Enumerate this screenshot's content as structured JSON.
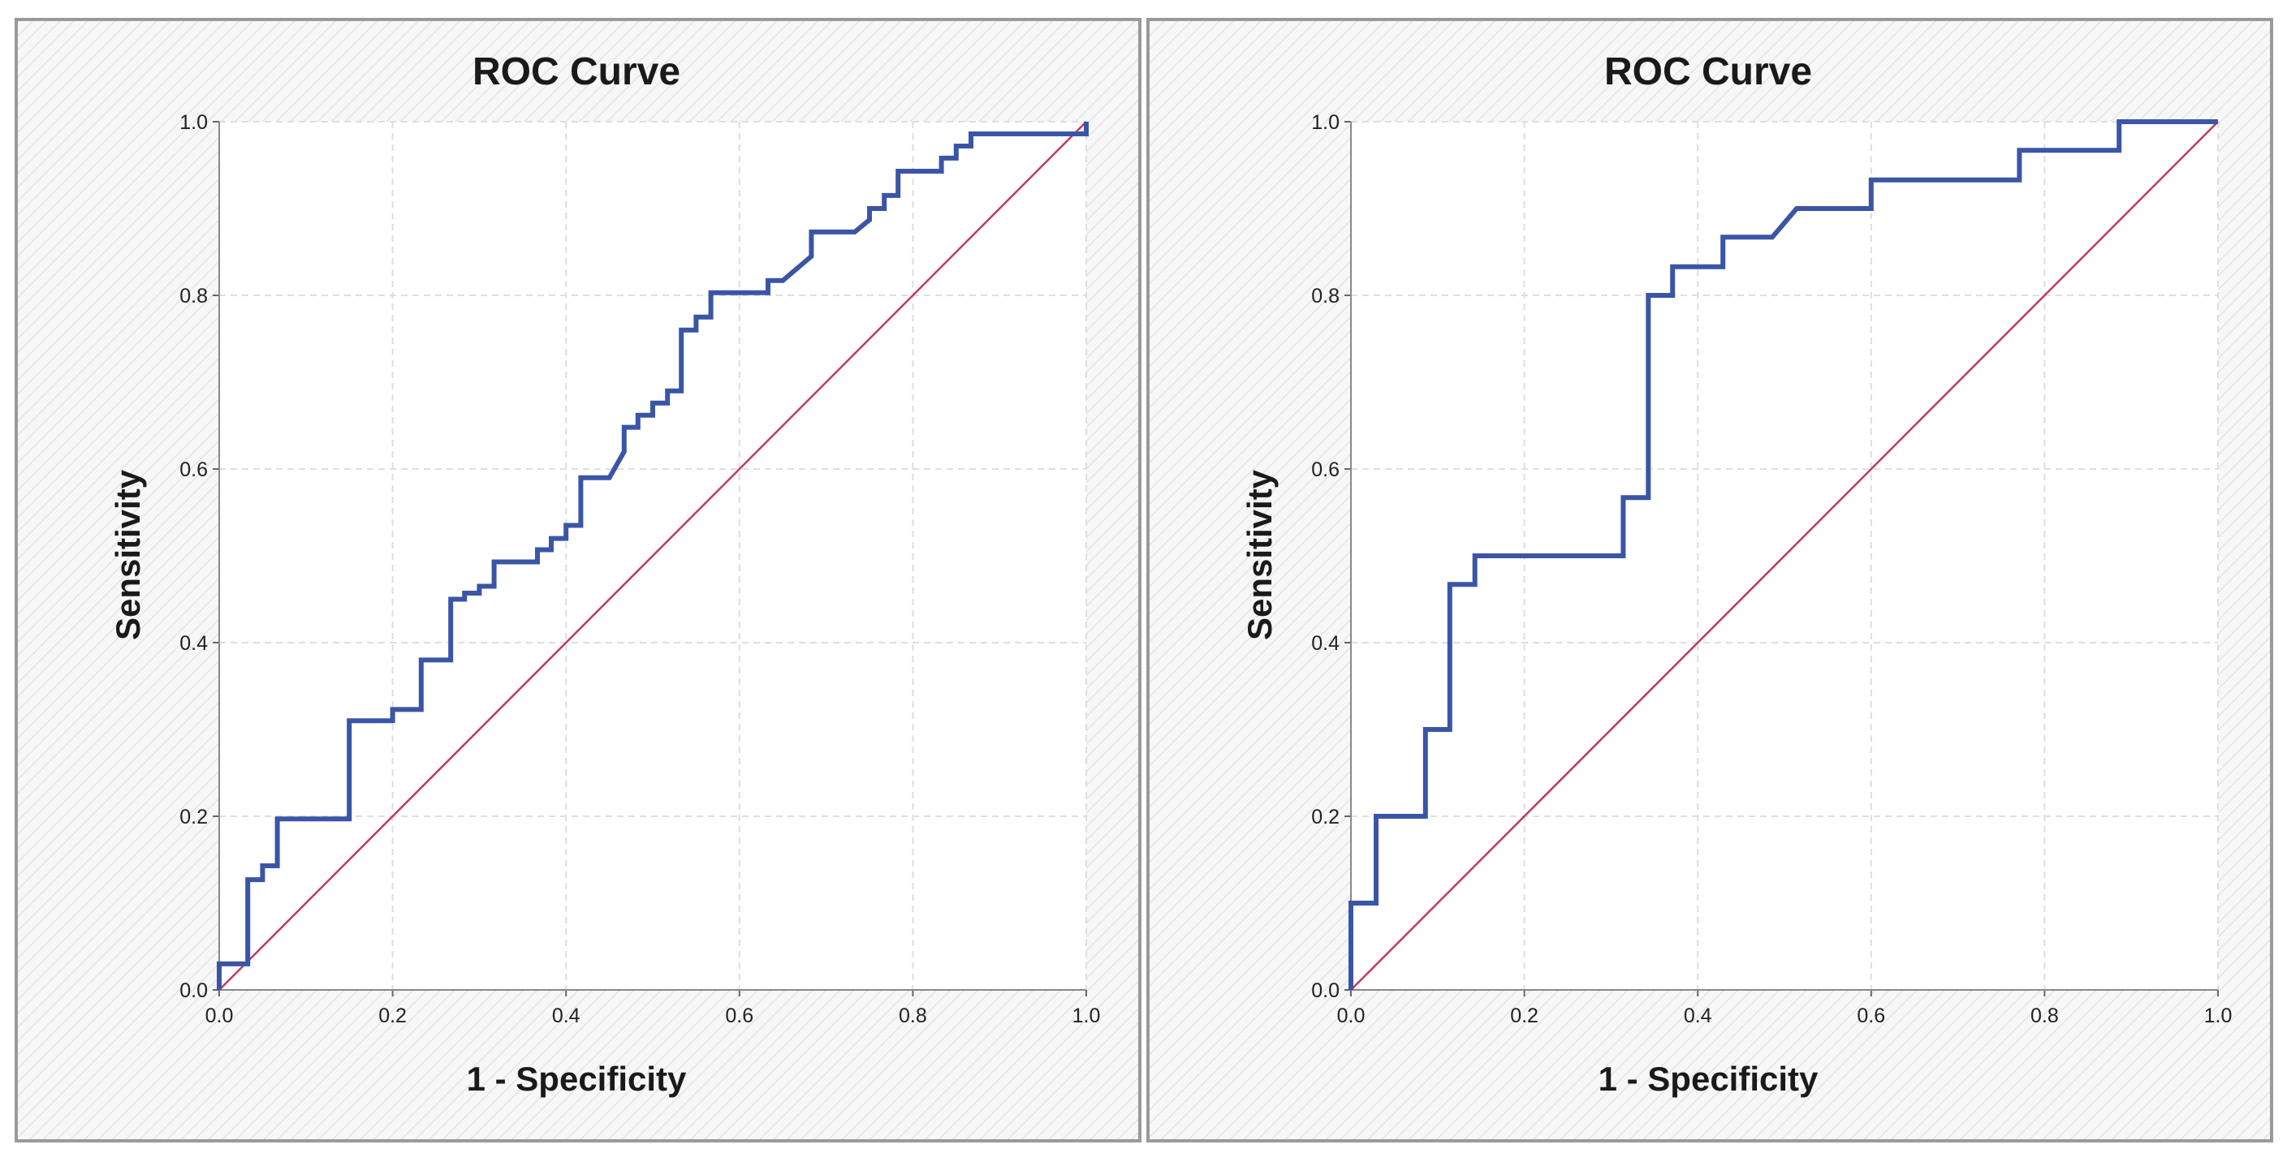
{
  "chart_data": [
    {
      "type": "line",
      "title": "ROC Curve",
      "xlabel": "1 - Specificity",
      "ylabel": "Sensitivity",
      "xlim": [
        0,
        1
      ],
      "ylim": [
        0,
        1
      ],
      "xticks": [
        "0.0",
        "0.2",
        "0.4",
        "0.6",
        "0.8",
        "1.0"
      ],
      "yticks": [
        "0.0",
        "0.2",
        "0.4",
        "0.6",
        "0.8",
        "1.0"
      ],
      "grid": true,
      "legend": "none",
      "series": [
        {
          "role": "roc-curve",
          "color": "#3b55a6",
          "x": [
            0.0,
            0.0,
            0.033,
            0.033,
            0.05,
            0.05,
            0.067,
            0.067,
            0.15,
            0.15,
            0.2,
            0.2,
            0.233,
            0.233,
            0.267,
            0.267,
            0.283,
            0.283,
            0.3,
            0.3,
            0.317,
            0.317,
            0.367,
            0.367,
            0.383,
            0.383,
            0.4,
            0.4,
            0.417,
            0.417,
            0.45,
            0.467,
            0.467,
            0.483,
            0.483,
            0.5,
            0.5,
            0.517,
            0.517,
            0.533,
            0.533,
            0.55,
            0.55,
            0.567,
            0.567,
            0.633,
            0.633,
            0.65,
            0.683,
            0.683,
            0.733,
            0.75,
            0.75,
            0.767,
            0.767,
            0.783,
            0.783,
            0.833,
            0.833,
            0.85,
            0.85,
            0.867,
            0.867,
            0.883,
            0.883,
            1.0,
            1.0
          ],
          "y": [
            0.0,
            0.03,
            0.03,
            0.127,
            0.127,
            0.143,
            0.143,
            0.197,
            0.197,
            0.31,
            0.31,
            0.323,
            0.323,
            0.38,
            0.38,
            0.45,
            0.45,
            0.457,
            0.457,
            0.465,
            0.465,
            0.493,
            0.493,
            0.507,
            0.507,
            0.52,
            0.52,
            0.535,
            0.535,
            0.59,
            0.59,
            0.62,
            0.648,
            0.648,
            0.662,
            0.662,
            0.676,
            0.676,
            0.69,
            0.69,
            0.76,
            0.76,
            0.775,
            0.775,
            0.803,
            0.803,
            0.817,
            0.817,
            0.845,
            0.873,
            0.873,
            0.887,
            0.9,
            0.9,
            0.915,
            0.915,
            0.943,
            0.943,
            0.958,
            0.958,
            0.972,
            0.972,
            0.986,
            0.986,
            0.986,
            0.986,
            1.0
          ]
        },
        {
          "role": "reference-line",
          "color": "#c2395e",
          "x": [
            0.0,
            1.0
          ],
          "y": [
            0.0,
            1.0
          ]
        }
      ]
    },
    {
      "type": "line",
      "title": "ROC Curve",
      "xlabel": "1 - Specificity",
      "ylabel": "Sensitivity",
      "xlim": [
        0,
        1
      ],
      "ylim": [
        0,
        1
      ],
      "xticks": [
        "0.0",
        "0.2",
        "0.4",
        "0.6",
        "0.8",
        "1.0"
      ],
      "yticks": [
        "0.0",
        "0.2",
        "0.4",
        "0.6",
        "0.8",
        "1.0"
      ],
      "grid": true,
      "legend": "none",
      "series": [
        {
          "role": "roc-curve",
          "color": "#3b55a6",
          "x": [
            0.0,
            0.0,
            0.029,
            0.029,
            0.086,
            0.086,
            0.114,
            0.114,
            0.143,
            0.143,
            0.314,
            0.314,
            0.343,
            0.343,
            0.371,
            0.371,
            0.429,
            0.429,
            0.486,
            0.514,
            0.6,
            0.6,
            0.771,
            0.771,
            0.886,
            0.886,
            1.0
          ],
          "y": [
            0.0,
            0.1,
            0.1,
            0.2,
            0.2,
            0.3,
            0.3,
            0.467,
            0.467,
            0.5,
            0.5,
            0.567,
            0.567,
            0.8,
            0.8,
            0.833,
            0.833,
            0.867,
            0.867,
            0.9,
            0.9,
            0.933,
            0.933,
            0.967,
            0.967,
            1.0,
            1.0
          ]
        },
        {
          "role": "reference-line",
          "color": "#c2395e",
          "x": [
            0.0,
            1.0
          ],
          "y": [
            0.0,
            1.0
          ]
        }
      ]
    }
  ]
}
